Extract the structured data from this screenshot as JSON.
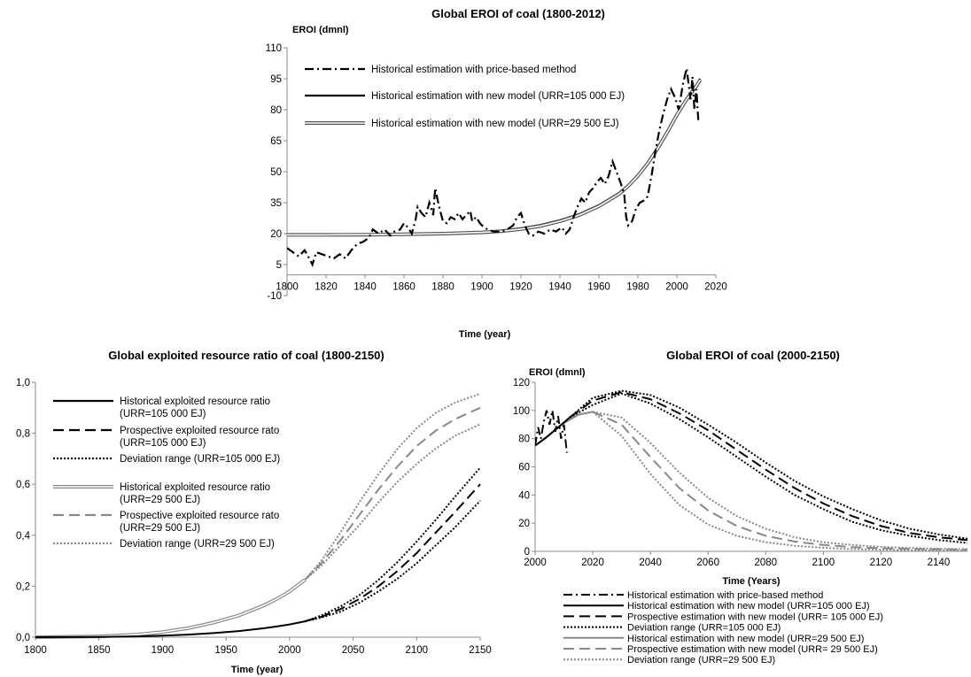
{
  "chart_data": [
    {
      "type": "line",
      "title": "Global EROI of coal (1800-2012)",
      "ylabel": "EROI (dmnl)",
      "xlabel": "Time (year)",
      "xlim": [
        1800,
        2020
      ],
      "ylim": [
        -10,
        110
      ],
      "xticks": [
        1800,
        1820,
        1840,
        1860,
        1880,
        1900,
        1920,
        1940,
        1960,
        1980,
        2000,
        2020
      ],
      "yticks": [
        -10,
        5,
        20,
        35,
        50,
        65,
        80,
        95,
        110
      ],
      "legend_position": "top-left",
      "series": [
        {
          "name": "Historical estimation with price-based method",
          "style": "dashdot",
          "color": "#000000",
          "x": [
            1800,
            1803,
            1806,
            1809,
            1812,
            1813,
            1815,
            1818,
            1821,
            1824,
            1827,
            1830,
            1833,
            1836,
            1839,
            1842,
            1844,
            1847,
            1850,
            1853,
            1855,
            1858,
            1860,
            1862,
            1864,
            1866,
            1867,
            1869,
            1871,
            1873,
            1875,
            1876,
            1878,
            1880,
            1882,
            1884,
            1886,
            1888,
            1890,
            1892,
            1894,
            1895,
            1897,
            1899,
            1901,
            1903,
            1906,
            1910,
            1913,
            1916,
            1918,
            1920,
            1922,
            1924,
            1926,
            1929,
            1932,
            1935,
            1938,
            1941,
            1943,
            1945,
            1947,
            1949,
            1951,
            1953,
            1955,
            1957,
            1959,
            1961,
            1963,
            1965,
            1967,
            1969,
            1971,
            1973,
            1974,
            1975,
            1977,
            1979,
            1981,
            1983,
            1985,
            1987,
            1989,
            1991,
            1993,
            1995,
            1997,
            1999,
            2001,
            2003,
            2005,
            2007,
            2008,
            2009,
            2010,
            2011
          ],
          "y": [
            13,
            11,
            9,
            12,
            7,
            5,
            11,
            10,
            9,
            8,
            10,
            8,
            12,
            15,
            16,
            18,
            22,
            20,
            22,
            19,
            21,
            22,
            25,
            23,
            20,
            27,
            33,
            30,
            28,
            35,
            29,
            42,
            33,
            26,
            25,
            28,
            27,
            30,
            27,
            29,
            31,
            26,
            28,
            25,
            23,
            22,
            21,
            21,
            22,
            24,
            28,
            30,
            24,
            20,
            19,
            21,
            20,
            22,
            21,
            23,
            20,
            22,
            28,
            33,
            37,
            35,
            40,
            42,
            45,
            47,
            44,
            48,
            55,
            50,
            45,
            39,
            28,
            24,
            26,
            32,
            35,
            36,
            38,
            48,
            60,
            70,
            78,
            85,
            90,
            86,
            80,
            92,
            100,
            85,
            96,
            80,
            90,
            75
          ]
        },
        {
          "name": "Historical estimation with new model (URR=105 000 EJ)",
          "style": "solid",
          "color": "#000000",
          "x": [
            1800,
            1820,
            1840,
            1860,
            1880,
            1900,
            1910,
            1920,
            1930,
            1940,
            1950,
            1960,
            1970,
            1975,
            1980,
            1985,
            1990,
            1995,
            2000,
            2005,
            2010,
            2012
          ],
          "y": [
            19.5,
            19.5,
            19.6,
            19.8,
            20.1,
            20.8,
            21.5,
            22.6,
            24.2,
            26.5,
            29.5,
            33.8,
            39.5,
            43.5,
            48.5,
            54.5,
            61.5,
            69.5,
            78,
            85.5,
            92,
            95
          ]
        },
        {
          "name": "Historical estimation with new model (URR=29 500 EJ)",
          "style": "double",
          "color": "#555555",
          "x": [
            1800,
            1820,
            1840,
            1860,
            1880,
            1900,
            1910,
            1920,
            1930,
            1940,
            1950,
            1960,
            1970,
            1975,
            1980,
            1985,
            1990,
            1995,
            2000,
            2005,
            2010,
            2012
          ],
          "y": [
            19.4,
            19.4,
            19.5,
            19.7,
            20,
            20.6,
            21.2,
            22.2,
            23.7,
            26,
            29,
            33.3,
            39,
            43,
            48,
            54,
            61,
            69,
            77.5,
            85,
            91.5,
            94.5
          ]
        }
      ]
    },
    {
      "type": "line",
      "title": "Global exploited resource ratio of coal (1800-2150)",
      "ylabel": "",
      "xlabel": "Time (year)",
      "xlim": [
        1800,
        2150
      ],
      "ylim": [
        0,
        1
      ],
      "xticks": [
        1800,
        1850,
        1900,
        1950,
        2000,
        2050,
        2100,
        2150
      ],
      "yticks": [
        0,
        0.2,
        0.4,
        0.6,
        0.8,
        1.0
      ],
      "ytick_labels": [
        "0,0",
        "0,2",
        "0,4",
        "0,6",
        "0,8",
        "1,0"
      ],
      "legend_position": "top-left",
      "series": [
        {
          "name": "Historical exploited resource ratio",
          "name_line2": "(URR=105 000 EJ)",
          "style": "solid",
          "color": "#000000",
          "x": [
            1800,
            1850,
            1880,
            1900,
            1920,
            1940,
            1960,
            1980,
            1990,
            2000,
            2012
          ],
          "y": [
            0,
            0.001,
            0.003,
            0.006,
            0.01,
            0.016,
            0.024,
            0.035,
            0.042,
            0.05,
            0.062
          ]
        },
        {
          "name": "Prospective exploited resource rato",
          "name_line2": "(URR=105 000 EJ)",
          "style": "longdash",
          "color": "#000000",
          "x": [
            2012,
            2025,
            2040,
            2055,
            2070,
            2085,
            2100,
            2115,
            2130,
            2150
          ],
          "y": [
            0.062,
            0.08,
            0.11,
            0.15,
            0.2,
            0.26,
            0.33,
            0.41,
            0.49,
            0.6
          ]
        },
        {
          "name": "Deviation range (URR=105 000 EJ)",
          "style": "dotted",
          "color": "#000000",
          "x": [
            2012,
            2025,
            2040,
            2055,
            2070,
            2085,
            2100,
            2115,
            2130,
            2150
          ],
          "y": [
            0.062,
            0.085,
            0.12,
            0.165,
            0.225,
            0.295,
            0.375,
            0.46,
            0.55,
            0.665
          ]
        },
        {
          "name": "",
          "style": "dotted",
          "color": "#000000",
          "x": [
            2012,
            2025,
            2040,
            2055,
            2070,
            2085,
            2100,
            2115,
            2130,
            2150
          ],
          "y": [
            0.062,
            0.077,
            0.1,
            0.135,
            0.18,
            0.23,
            0.29,
            0.36,
            0.43,
            0.535
          ]
        },
        {
          "name": "Historical exploited resource ratio",
          "name_line2": "(URR=29 500 EJ)",
          "style": "double",
          "color": "#888888",
          "x": [
            1800,
            1850,
            1880,
            1900,
            1920,
            1940,
            1960,
            1980,
            1990,
            2000,
            2012
          ],
          "y": [
            0,
            0.003,
            0.01,
            0.02,
            0.035,
            0.057,
            0.085,
            0.125,
            0.15,
            0.18,
            0.225
          ]
        },
        {
          "name": "Prospective exploited resource rato",
          "name_line2": "(URR=29 500 EJ)",
          "style": "longdash",
          "color": "#888888",
          "x": [
            2012,
            2025,
            2040,
            2055,
            2070,
            2085,
            2100,
            2115,
            2130,
            2150
          ],
          "y": [
            0.225,
            0.29,
            0.38,
            0.48,
            0.58,
            0.67,
            0.75,
            0.81,
            0.855,
            0.9
          ]
        },
        {
          "name": "Deviation range (URR=29 500 EJ)",
          "style": "dotted",
          "color": "#888888",
          "x": [
            2012,
            2025,
            2040,
            2055,
            2070,
            2085,
            2100,
            2115,
            2130,
            2150
          ],
          "y": [
            0.225,
            0.3,
            0.41,
            0.53,
            0.64,
            0.74,
            0.82,
            0.88,
            0.92,
            0.955
          ]
        },
        {
          "name": "",
          "style": "dotted",
          "color": "#888888",
          "x": [
            2012,
            2025,
            2040,
            2055,
            2070,
            2085,
            2100,
            2115,
            2130,
            2150
          ],
          "y": [
            0.225,
            0.28,
            0.36,
            0.44,
            0.53,
            0.61,
            0.68,
            0.74,
            0.79,
            0.835
          ]
        }
      ]
    },
    {
      "type": "line",
      "title": "Global EROI of coal (2000-2150)",
      "ylabel": "EROI (dmnl)",
      "xlabel": "Time (Years)",
      "xlim": [
        2000,
        2150
      ],
      "ylim": [
        0,
        120
      ],
      "xticks": [
        2000,
        2020,
        2040,
        2060,
        2080,
        2100,
        2120,
        2140
      ],
      "yticks": [
        0,
        20,
        40,
        60,
        80,
        100,
        120
      ],
      "legend_position": "below",
      "series": [
        {
          "name": "Historical estimation with price-based method",
          "style": "dashdot",
          "color": "#000000",
          "x": [
            2000,
            2001,
            2002,
            2003,
            2004,
            2005,
            2006,
            2007,
            2008,
            2009,
            2010,
            2011
          ],
          "y": [
            75,
            88,
            80,
            92,
            100,
            90,
            100,
            85,
            96,
            80,
            90,
            70
          ]
        },
        {
          "name": "Historical estimation with new model (URR=105 000 EJ)",
          "style": "solid",
          "color": "#000000",
          "x": [
            2000,
            2004,
            2008,
            2012
          ],
          "y": [
            75,
            81,
            88,
            95
          ]
        },
        {
          "name": "Prospective estimation with new model (URR= 105 000 EJ)",
          "style": "longdash",
          "color": "#000000",
          "x": [
            2012,
            2020,
            2030,
            2040,
            2050,
            2060,
            2070,
            2080,
            2090,
            2100,
            2110,
            2120,
            2130,
            2140,
            2150
          ],
          "y": [
            95,
            107,
            113,
            108,
            98,
            86,
            72,
            58,
            45,
            34,
            25,
            18,
            13,
            10,
            8
          ]
        },
        {
          "name": "Deviation range (URR=105 000 EJ)",
          "style": "dotted",
          "color": "#000000",
          "x": [
            2012,
            2020,
            2030,
            2040,
            2050,
            2060,
            2070,
            2080,
            2090,
            2100,
            2110,
            2120,
            2130,
            2140,
            2150
          ],
          "y": [
            95,
            109,
            114,
            111,
            102,
            90,
            77,
            63,
            50,
            39,
            30,
            22,
            16,
            12,
            9
          ]
        },
        {
          "name": "",
          "style": "dotted",
          "color": "#000000",
          "x": [
            2012,
            2020,
            2030,
            2040,
            2050,
            2060,
            2070,
            2080,
            2090,
            2100,
            2110,
            2120,
            2130,
            2140,
            2150
          ],
          "y": [
            95,
            104,
            112,
            105,
            94,
            81,
            67,
            53,
            40,
            30,
            21,
            15,
            11,
            8,
            6
          ]
        },
        {
          "name": "Historical estimation with new model (URR=29 500 EJ)",
          "style": "solid",
          "color": "#888888",
          "x": [
            2000,
            2005,
            2010,
            2015,
            2020
          ],
          "y": [
            75,
            83,
            91,
            97,
            99
          ]
        },
        {
          "name": "Prospective estimation with new model (URR= 29 500 EJ)",
          "style": "longdash",
          "color": "#888888",
          "x": [
            2020,
            2030,
            2040,
            2050,
            2060,
            2070,
            2080,
            2090,
            2100,
            2110,
            2120,
            2130,
            2140,
            2150
          ],
          "y": [
            99,
            90,
            67,
            45,
            29,
            18,
            11,
            7,
            4.5,
            3,
            2.2,
            1.7,
            1.4,
            1.2
          ]
        },
        {
          "name": "Deviation range (URR=29 500 EJ)",
          "style": "dotted",
          "color": "#888888",
          "x": [
            2020,
            2030,
            2040,
            2050,
            2060,
            2070,
            2080,
            2090,
            2100,
            2110,
            2120,
            2130,
            2140,
            2150
          ],
          "y": [
            99,
            95,
            77,
            56,
            38,
            25,
            16,
            10,
            6.5,
            4.5,
            3.2,
            2.4,
            1.9,
            1.6
          ]
        },
        {
          "name": "",
          "style": "dotted",
          "color": "#888888",
          "x": [
            2020,
            2030,
            2040,
            2050,
            2060,
            2070,
            2080,
            2090,
            2100,
            2110,
            2120,
            2130,
            2140,
            2150
          ],
          "y": [
            99,
            82,
            55,
            33,
            19,
            11,
            6.5,
            4,
            2.5,
            1.6,
            1.1,
            0.8,
            0.6,
            0.5
          ]
        }
      ]
    }
  ]
}
